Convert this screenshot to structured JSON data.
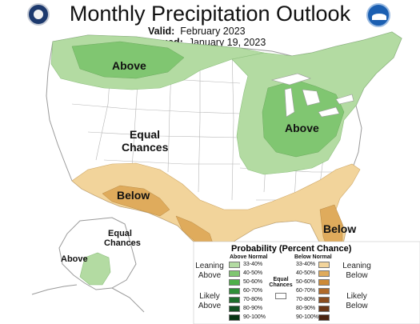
{
  "header": {
    "title": "Monthly Precipitation Outlook",
    "valid_label": "Valid:",
    "valid_value": "February 2023",
    "issued_label": "Issued:",
    "issued_value": "January 19, 2023"
  },
  "logos": {
    "left": "commerce-seal",
    "right_text": "NOAA"
  },
  "map_labels": {
    "above_northwest": "Above",
    "equal_chances_1": "Equal",
    "equal_chances_2": "Chances",
    "above_ohio_valley": "Above",
    "below_southwest": "Below",
    "below_florida": "Below",
    "alaska_equal_1": "Equal",
    "alaska_equal_2": "Chances",
    "alaska_above": "Above"
  },
  "legend": {
    "title": "Probability (Percent Chance)",
    "above_header": "Above Normal",
    "below_header": "Below Normal",
    "equal_label_1": "Equal",
    "equal_label_2": "Chances",
    "leaning_above_1": "Leaning",
    "leaning_above_2": "Above",
    "likely_above_1": "Likely",
    "likely_above_2": "Above",
    "leaning_below_1": "Leaning",
    "leaning_below_2": "Below",
    "likely_below_1": "Likely",
    "likely_below_2": "Below",
    "ranges": [
      "33-40%",
      "40-50%",
      "50-60%",
      "60-70%",
      "70-80%",
      "80-90%",
      "90-100%"
    ],
    "above_colors": [
      "#b3dba2",
      "#80c671",
      "#4faf49",
      "#2f8f38",
      "#1d6e2b",
      "#125021",
      "#073514"
    ],
    "below_colors": [
      "#f2d49b",
      "#dfab5c",
      "#cd8a38",
      "#b06a2a",
      "#8b4d1f",
      "#6b3717",
      "#4a230f"
    ]
  }
}
